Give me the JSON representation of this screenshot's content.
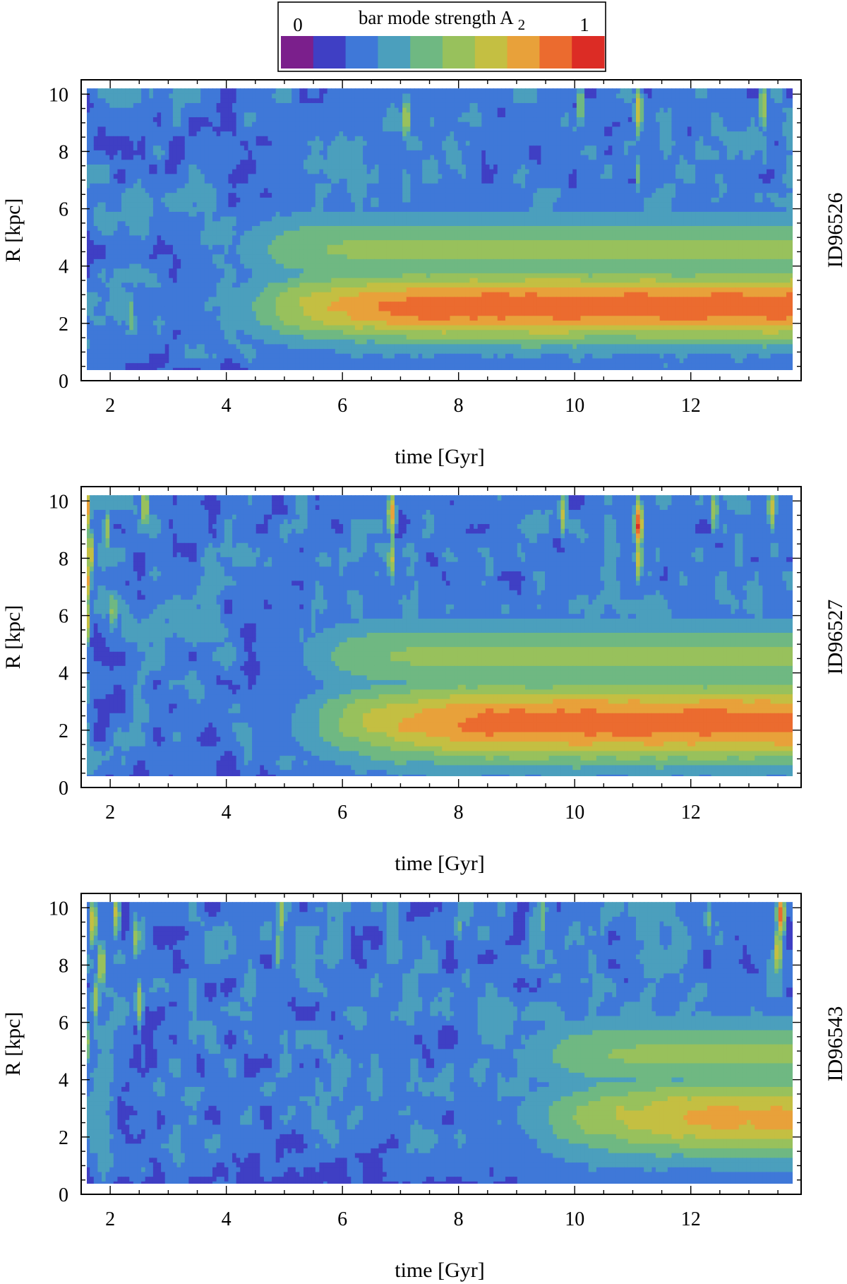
{
  "colorbar": {
    "title": "bar mode strength A",
    "title_subscript": "2",
    "min_label": "0",
    "max_label": "1",
    "colors": [
      "#7b1f8c",
      "#3f3fc4",
      "#3f78d8",
      "#4b9fbd",
      "#6fb882",
      "#98c15c",
      "#c4bf42",
      "#e8a13a",
      "#eb6b2f",
      "#dc2c25"
    ]
  },
  "chart_data": [
    {
      "type": "heatmap",
      "id_label": "ID96526",
      "xlabel": "time [Gyr]",
      "ylabel": "R [kpc]",
      "xlim": [
        1.5,
        13.9
      ],
      "ylim": [
        0,
        10.5
      ],
      "x_ticks": [
        "2",
        "4",
        "6",
        "8",
        "10",
        "12"
      ],
      "y_ticks": [
        "0",
        "2",
        "4",
        "6",
        "8",
        "10"
      ],
      "z_range": [
        0,
        1
      ],
      "bar": {
        "onset": 4.4,
        "r_inner": 1.6,
        "r_outer": 3.6,
        "peak": 0.66,
        "r_mid": 2.6
      },
      "spikes": [
        {
          "t": 1.65,
          "r": 8.8,
          "amp": 0.34
        },
        {
          "t": 2.35,
          "r": 2.3,
          "amp": 0.5
        },
        {
          "t": 2.35,
          "r": 4.8,
          "amp": 0.3
        },
        {
          "t": 5.05,
          "r": 7.5,
          "amp": 0.18
        },
        {
          "t": 7.1,
          "r": 9.2,
          "amp": 0.62
        },
        {
          "t": 7.1,
          "r": 6.8,
          "amp": 0.44
        },
        {
          "t": 10.1,
          "r": 9.6,
          "amp": 0.55
        },
        {
          "t": 10.1,
          "r": 7.4,
          "amp": 0.34
        },
        {
          "t": 11.1,
          "r": 9.4,
          "amp": 0.7
        },
        {
          "t": 11.1,
          "r": 7.2,
          "amp": 0.44
        },
        {
          "t": 12.35,
          "r": 8.6,
          "amp": 0.26
        },
        {
          "t": 13.25,
          "r": 9.6,
          "amp": 0.62
        },
        {
          "t": 13.25,
          "r": 8.1,
          "amp": 0.4
        }
      ]
    },
    {
      "type": "heatmap",
      "id_label": "ID96527",
      "xlabel": "time [Gyr]",
      "ylabel": "R [kpc]",
      "xlim": [
        1.5,
        13.9
      ],
      "ylim": [
        0,
        10.5
      ],
      "x_ticks": [
        "2",
        "4",
        "6",
        "8",
        "10",
        "12"
      ],
      "y_ticks": [
        "0",
        "2",
        "4",
        "6",
        "8",
        "10"
      ],
      "z_range": [
        0,
        1
      ],
      "bar": {
        "onset": 5.5,
        "r_inner": 1.3,
        "r_outer": 3.6,
        "peak": 0.64,
        "r_mid": 2.3
      },
      "spikes": [
        {
          "t": 1.6,
          "r": 9.8,
          "amp": 0.78
        },
        {
          "t": 1.65,
          "r": 8.2,
          "amp": 0.72
        },
        {
          "t": 1.6,
          "r": 7.2,
          "amp": 0.74
        },
        {
          "t": 1.6,
          "r": 5.8,
          "amp": 0.66
        },
        {
          "t": 1.95,
          "r": 9.0,
          "amp": 0.56
        },
        {
          "t": 2.05,
          "r": 6.2,
          "amp": 0.55
        },
        {
          "t": 2.6,
          "r": 9.8,
          "amp": 0.64
        },
        {
          "t": 1.55,
          "r": 3.2,
          "amp": 0.52
        },
        {
          "t": 5.5,
          "r": 6.0,
          "amp": 0.4
        },
        {
          "t": 6.85,
          "r": 9.6,
          "amp": 0.74
        },
        {
          "t": 6.85,
          "r": 8.0,
          "amp": 0.62
        },
        {
          "t": 9.8,
          "r": 9.6,
          "amp": 0.62
        },
        {
          "t": 11.1,
          "r": 9.2,
          "amp": 0.92
        },
        {
          "t": 11.1,
          "r": 8.0,
          "amp": 0.66
        },
        {
          "t": 12.4,
          "r": 9.7,
          "amp": 0.58
        },
        {
          "t": 13.4,
          "r": 9.8,
          "amp": 0.66
        }
      ]
    },
    {
      "type": "heatmap",
      "id_label": "ID96543",
      "xlabel": "time [Gyr]",
      "ylabel": "R [kpc]",
      "xlim": [
        1.5,
        13.9
      ],
      "ylim": [
        0,
        10.5
      ],
      "x_ticks": [
        "2",
        "4",
        "6",
        "8",
        "10",
        "12"
      ],
      "y_ticks": [
        "0",
        "2",
        "4",
        "6",
        "8",
        "10"
      ],
      "z_range": [
        0,
        1
      ],
      "bar": {
        "onset": 9.3,
        "r_inner": 1.6,
        "r_outer": 3.9,
        "peak": 0.52,
        "r_mid": 2.7
      },
      "spikes": [
        {
          "t": 1.7,
          "r": 9.5,
          "amp": 0.7
        },
        {
          "t": 1.85,
          "r": 8.0,
          "amp": 0.66
        },
        {
          "t": 1.75,
          "r": 6.8,
          "amp": 0.58
        },
        {
          "t": 2.1,
          "r": 9.8,
          "amp": 0.62
        },
        {
          "t": 2.45,
          "r": 9.0,
          "amp": 0.56
        },
        {
          "t": 2.5,
          "r": 6.7,
          "amp": 0.6
        },
        {
          "t": 1.6,
          "r": 5.3,
          "amp": 0.52
        },
        {
          "t": 4.95,
          "r": 9.8,
          "amp": 0.58
        },
        {
          "t": 4.9,
          "r": 8.6,
          "amp": 0.5
        },
        {
          "t": 8.0,
          "r": 9.4,
          "amp": 0.44
        },
        {
          "t": 9.45,
          "r": 9.7,
          "amp": 0.5
        },
        {
          "t": 10.5,
          "r": 9.6,
          "amp": 0.4
        },
        {
          "t": 12.3,
          "r": 9.6,
          "amp": 0.44
        },
        {
          "t": 13.55,
          "r": 9.8,
          "amp": 0.86
        },
        {
          "t": 13.5,
          "r": 8.5,
          "amp": 0.7
        }
      ]
    }
  ]
}
